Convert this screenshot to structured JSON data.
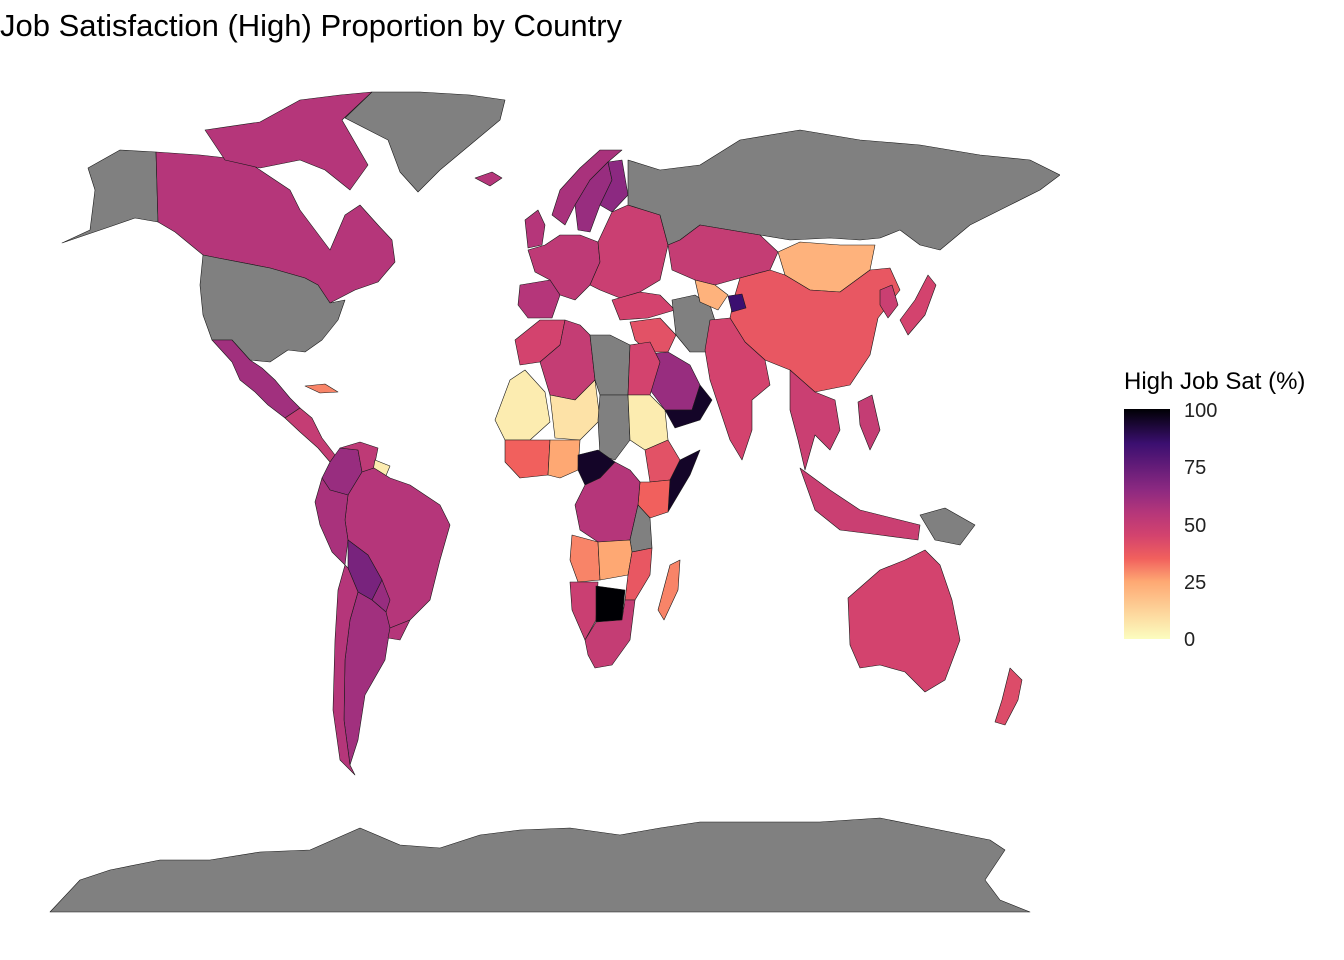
{
  "title": "Job Satisfaction (High) Proportion by Country",
  "legend": {
    "title": "High Job Sat (%)",
    "ticks": [
      "100",
      "75",
      "50",
      "25",
      "0"
    ],
    "min": 0,
    "max": 100,
    "colormap": "magma (reversed)",
    "missing_color": "#808080"
  },
  "colors": {
    "missing": "#808080",
    "v0": "#FCFDBF",
    "v25": "#FEA873",
    "v35": "#F1605D",
    "v45": "#D3436E",
    "v55": "#B5367A",
    "v65": "#8C2981",
    "v85": "#3B0F70",
    "v100": "#000004"
  },
  "map_data": {
    "type": "choropleth",
    "variable": "High Job Sat (%)",
    "regions": [
      {
        "id": "canada",
        "value": 55
      },
      {
        "id": "usa",
        "value": null
      },
      {
        "id": "alaska",
        "value": null
      },
      {
        "id": "greenland",
        "value": null
      },
      {
        "id": "arctic-islands",
        "value": 55
      },
      {
        "id": "mexico",
        "value": 60
      },
      {
        "id": "central-america",
        "value": 50
      },
      {
        "id": "cuba",
        "value": 30
      },
      {
        "id": "colombia",
        "value": 62
      },
      {
        "id": "venezuela",
        "value": 52
      },
      {
        "id": "guyana",
        "value": 5
      },
      {
        "id": "brazil",
        "value": 55
      },
      {
        "id": "peru",
        "value": 58
      },
      {
        "id": "bolivia",
        "value": 70
      },
      {
        "id": "paraguay",
        "value": 62
      },
      {
        "id": "chile",
        "value": 55
      },
      {
        "id": "argentina",
        "value": 60
      },
      {
        "id": "uruguay",
        "value": 55
      },
      {
        "id": "iceland",
        "value": 55
      },
      {
        "id": "uk",
        "value": 55
      },
      {
        "id": "norway",
        "value": 58
      },
      {
        "id": "sweden",
        "value": 62
      },
      {
        "id": "finland",
        "value": 65
      },
      {
        "id": "western-europe",
        "value": 52
      },
      {
        "id": "eastern-europe",
        "value": 48
      },
      {
        "id": "iberia",
        "value": 55
      },
      {
        "id": "russia",
        "value": null
      },
      {
        "id": "kazakhstan",
        "value": 50
      },
      {
        "id": "mongolia",
        "value": 22
      },
      {
        "id": "china",
        "value": 38
      },
      {
        "id": "japan",
        "value": 45
      },
      {
        "id": "korea",
        "value": 48
      },
      {
        "id": "turkey",
        "value": 45
      },
      {
        "id": "middle-east",
        "value": 40
      },
      {
        "id": "iran",
        "value": null
      },
      {
        "id": "central-asia",
        "value": 22
      },
      {
        "id": "kyrgyzstan",
        "value": 85
      },
      {
        "id": "india",
        "value": 45
      },
      {
        "id": "southeast-asia",
        "value": 48
      },
      {
        "id": "indonesia",
        "value": 48
      },
      {
        "id": "philippines",
        "value": 50
      },
      {
        "id": "new-guinea",
        "value": null
      },
      {
        "id": "australia",
        "value": 45
      },
      {
        "id": "new-zealand",
        "value": 42
      },
      {
        "id": "morocco",
        "value": 45
      },
      {
        "id": "algeria",
        "value": 50
      },
      {
        "id": "libya",
        "value": null
      },
      {
        "id": "egypt",
        "value": 45
      },
      {
        "id": "saudi-arabia",
        "value": 62
      },
      {
        "id": "oman-yemen",
        "value": 95
      },
      {
        "id": "mali",
        "value": 5
      },
      {
        "id": "niger",
        "value": 8
      },
      {
        "id": "chad",
        "value": null
      },
      {
        "id": "sudan",
        "value": 5
      },
      {
        "id": "ethiopia",
        "value": 40
      },
      {
        "id": "somalia",
        "value": 95
      },
      {
        "id": "kenya",
        "value": 35
      },
      {
        "id": "west-africa",
        "value": 35
      },
      {
        "id": "nigeria",
        "value": 25
      },
      {
        "id": "cameroon",
        "value": 95
      },
      {
        "id": "congo-drc",
        "value": 55
      },
      {
        "id": "tanzania",
        "value": null
      },
      {
        "id": "angola",
        "value": 30
      },
      {
        "id": "zambia",
        "value": 25
      },
      {
        "id": "mozambique",
        "value": 38
      },
      {
        "id": "namibia",
        "value": 48
      },
      {
        "id": "botswana",
        "value": 100
      },
      {
        "id": "south-africa",
        "value": 50
      },
      {
        "id": "madagascar",
        "value": 30
      },
      {
        "id": "antarctica",
        "value": null
      }
    ]
  }
}
